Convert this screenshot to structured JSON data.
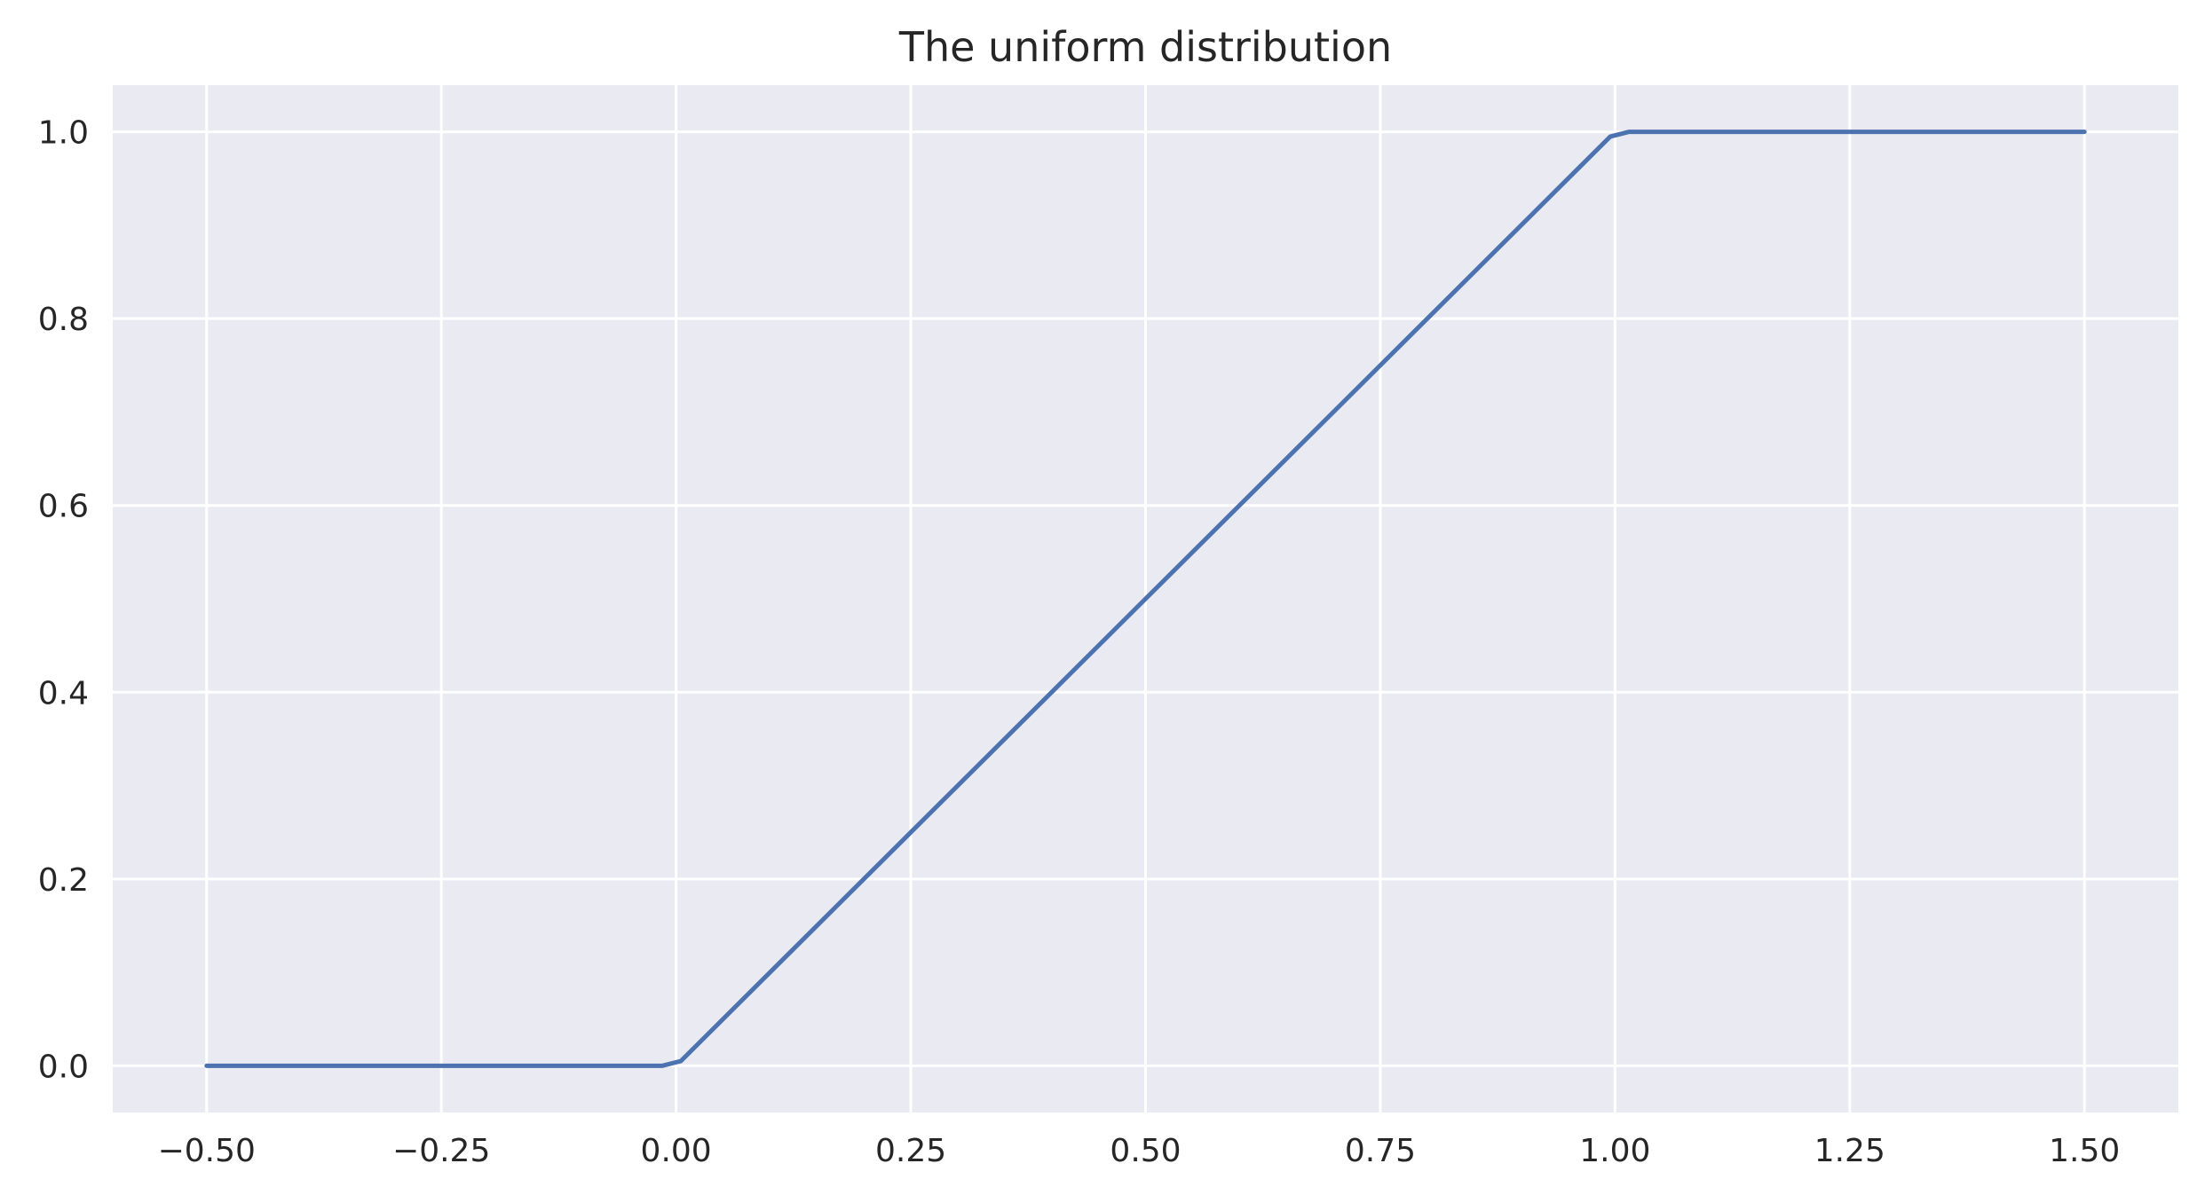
{
  "chart_data": {
    "type": "line",
    "title": "The uniform distribution",
    "xlabel": "",
    "ylabel": "",
    "xlim": [
      -0.6,
      1.6
    ],
    "ylim": [
      -0.05,
      1.05
    ],
    "xticks": [
      -0.5,
      -0.25,
      0.0,
      0.25,
      0.5,
      0.75,
      1.0,
      1.25,
      1.5
    ],
    "xtick_labels": [
      "−0.50",
      "−0.25",
      "0.00",
      "0.25",
      "0.50",
      "0.75",
      "1.00",
      "1.25",
      "1.50"
    ],
    "yticks": [
      0.0,
      0.2,
      0.4,
      0.6,
      0.8,
      1.0
    ],
    "ytick_labels": [
      "0.0",
      "0.2",
      "0.4",
      "0.6",
      "0.8",
      "1.0"
    ],
    "grid": true,
    "series": [
      {
        "color": "#4c72b0",
        "x": [
          -0.5,
          -0.015,
          0.005,
          0.995,
          1.015,
          1.5
        ],
        "y": [
          0.0,
          0.0,
          0.005,
          0.995,
          1.0,
          1.0
        ]
      }
    ]
  },
  "colors": {
    "plot_background": "#eaeaf2",
    "grid": "#ffffff",
    "text": "#262626"
  }
}
